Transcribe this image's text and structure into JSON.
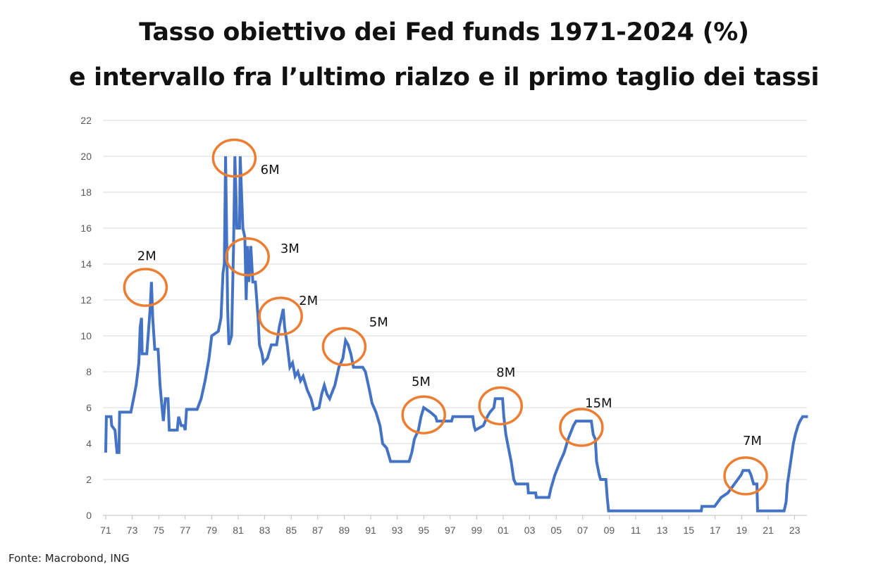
{
  "title_line1": "Tasso obiettivo dei Fed funds 1971-2024 (%)",
  "title_line2": "e intervallo fra l’ultimo rialzo e il primo taglio dei tassi",
  "source": "Fonte: Macrobond, ING",
  "colors": {
    "line": "#4472C4",
    "circle": "#ED7D31",
    "grid": "#D9D9D9"
  },
  "chart_data": {
    "type": "line",
    "title": "Tasso obiettivo dei Fed funds 1971-2024 (%)",
    "xlabel": "",
    "ylabel": "",
    "ylim": [
      0,
      22
    ],
    "xlim": [
      1971,
      2024
    ],
    "grid": true,
    "y_ticks": [
      "0",
      "2",
      "4",
      "6",
      "8",
      "10",
      "12",
      "14",
      "16",
      "18",
      "20",
      "22"
    ],
    "x_ticks": [
      "71",
      "73",
      "75",
      "77",
      "79",
      "81",
      "83",
      "85",
      "87",
      "89",
      "91",
      "93",
      "95",
      "97",
      "99",
      "01",
      "03",
      "05",
      "07",
      "09",
      "11",
      "13",
      "15",
      "17",
      "19",
      "21",
      "23"
    ],
    "series": [
      {
        "points": [
          [
            1971.0,
            3.5
          ],
          [
            1971.05,
            5.5
          ],
          [
            1971.4,
            5.5
          ],
          [
            1971.45,
            5.0
          ],
          [
            1971.7,
            4.75
          ],
          [
            1971.85,
            3.5
          ],
          [
            1972.0,
            3.5
          ],
          [
            1972.05,
            5.75
          ],
          [
            1972.9,
            5.75
          ],
          [
            1973.1,
            6.5
          ],
          [
            1973.3,
            7.25
          ],
          [
            1973.5,
            8.5
          ],
          [
            1973.6,
            10.5
          ],
          [
            1973.7,
            11.0
          ],
          [
            1973.75,
            9.0
          ],
          [
            1974.1,
            9.0
          ],
          [
            1974.2,
            10.0
          ],
          [
            1974.35,
            11.5
          ],
          [
            1974.45,
            13.0
          ],
          [
            1974.55,
            11.0
          ],
          [
            1974.7,
            9.25
          ],
          [
            1974.95,
            9.25
          ],
          [
            1975.1,
            7.25
          ],
          [
            1975.25,
            6.0
          ],
          [
            1975.35,
            5.25
          ],
          [
            1975.5,
            6.5
          ],
          [
            1975.7,
            6.5
          ],
          [
            1975.8,
            4.75
          ],
          [
            1976.4,
            4.75
          ],
          [
            1976.5,
            5.5
          ],
          [
            1976.7,
            5.0
          ],
          [
            1976.9,
            5.0
          ],
          [
            1977.0,
            4.75
          ],
          [
            1977.1,
            5.9
          ],
          [
            1977.9,
            5.9
          ],
          [
            1978.2,
            6.5
          ],
          [
            1978.5,
            7.5
          ],
          [
            1978.8,
            8.75
          ],
          [
            1979.0,
            10.0
          ],
          [
            1979.5,
            10.25
          ],
          [
            1979.7,
            11.0
          ],
          [
            1979.85,
            13.5
          ],
          [
            1979.95,
            14.0
          ],
          [
            1980.05,
            20.0
          ],
          [
            1980.2,
            11.5
          ],
          [
            1980.3,
            9.5
          ],
          [
            1980.5,
            10.0
          ],
          [
            1980.65,
            15.0
          ],
          [
            1980.75,
            20.0
          ],
          [
            1980.9,
            16.0
          ],
          [
            1981.1,
            16.0
          ],
          [
            1981.15,
            20.0
          ],
          [
            1981.35,
            16.0
          ],
          [
            1981.5,
            15.5
          ],
          [
            1981.6,
            12.0
          ],
          [
            1981.7,
            15.0
          ],
          [
            1981.8,
            13.0
          ],
          [
            1981.95,
            15.0
          ],
          [
            1982.1,
            13.0
          ],
          [
            1982.3,
            13.0
          ],
          [
            1982.5,
            11.0
          ],
          [
            1982.6,
            9.5
          ],
          [
            1982.8,
            9.0
          ],
          [
            1982.9,
            8.5
          ],
          [
            1983.2,
            8.75
          ],
          [
            1983.5,
            9.5
          ],
          [
            1983.9,
            9.5
          ],
          [
            1984.1,
            10.5
          ],
          [
            1984.4,
            11.5
          ],
          [
            1984.5,
            10.5
          ],
          [
            1984.7,
            9.5
          ],
          [
            1984.9,
            8.25
          ],
          [
            1985.1,
            8.5
          ],
          [
            1985.3,
            7.75
          ],
          [
            1985.5,
            8.0
          ],
          [
            1985.7,
            7.5
          ],
          [
            1985.9,
            7.75
          ],
          [
            1986.2,
            7.0
          ],
          [
            1986.5,
            6.5
          ],
          [
            1986.7,
            5.9
          ],
          [
            1987.1,
            6.0
          ],
          [
            1987.3,
            6.75
          ],
          [
            1987.5,
            7.25
          ],
          [
            1987.7,
            6.75
          ],
          [
            1987.9,
            6.5
          ],
          [
            1988.3,
            7.25
          ],
          [
            1988.6,
            8.25
          ],
          [
            1988.9,
            8.75
          ],
          [
            1989.1,
            9.75
          ],
          [
            1989.3,
            9.5
          ],
          [
            1989.5,
            9.0
          ],
          [
            1989.7,
            8.25
          ],
          [
            1990.4,
            8.25
          ],
          [
            1990.6,
            8.0
          ],
          [
            1990.9,
            7.0
          ],
          [
            1991.1,
            6.25
          ],
          [
            1991.4,
            5.75
          ],
          [
            1991.7,
            5.0
          ],
          [
            1991.9,
            4.0
          ],
          [
            1992.2,
            3.75
          ],
          [
            1992.5,
            3.0
          ],
          [
            1993.9,
            3.0
          ],
          [
            1994.1,
            3.5
          ],
          [
            1994.3,
            4.25
          ],
          [
            1994.6,
            4.75
          ],
          [
            1994.8,
            5.5
          ],
          [
            1995.0,
            6.0
          ],
          [
            1995.5,
            5.75
          ],
          [
            1995.9,
            5.5
          ],
          [
            1996.0,
            5.25
          ],
          [
            1997.1,
            5.25
          ],
          [
            1997.2,
            5.5
          ],
          [
            1998.7,
            5.5
          ],
          [
            1998.8,
            5.0
          ],
          [
            1998.9,
            4.75
          ],
          [
            1999.5,
            5.0
          ],
          [
            1999.8,
            5.5
          ],
          [
            2000.0,
            5.75
          ],
          [
            2000.3,
            6.0
          ],
          [
            2000.4,
            6.5
          ],
          [
            2000.95,
            6.5
          ],
          [
            2001.05,
            5.5
          ],
          [
            2001.2,
            4.5
          ],
          [
            2001.4,
            3.75
          ],
          [
            2001.6,
            3.0
          ],
          [
            2001.8,
            2.0
          ],
          [
            2001.95,
            1.75
          ],
          [
            2002.85,
            1.75
          ],
          [
            2002.9,
            1.25
          ],
          [
            2003.45,
            1.25
          ],
          [
            2003.5,
            1.0
          ],
          [
            2004.45,
            1.0
          ],
          [
            2004.6,
            1.5
          ],
          [
            2004.9,
            2.25
          ],
          [
            2005.3,
            3.0
          ],
          [
            2005.6,
            3.5
          ],
          [
            2005.9,
            4.25
          ],
          [
            2006.3,
            5.0
          ],
          [
            2006.5,
            5.25
          ],
          [
            2007.65,
            5.25
          ],
          [
            2007.8,
            4.5
          ],
          [
            2007.95,
            4.25
          ],
          [
            2008.05,
            3.0
          ],
          [
            2008.25,
            2.25
          ],
          [
            2008.35,
            2.0
          ],
          [
            2008.75,
            2.0
          ],
          [
            2008.85,
            1.0
          ],
          [
            2008.95,
            0.25
          ],
          [
            2015.95,
            0.25
          ],
          [
            2016.0,
            0.5
          ],
          [
            2016.95,
            0.5
          ],
          [
            2017.2,
            0.75
          ],
          [
            2017.45,
            1.0
          ],
          [
            2017.95,
            1.25
          ],
          [
            2018.2,
            1.5
          ],
          [
            2018.45,
            1.75
          ],
          [
            2018.7,
            2.0
          ],
          [
            2018.95,
            2.25
          ],
          [
            2019.1,
            2.5
          ],
          [
            2019.55,
            2.5
          ],
          [
            2019.7,
            2.25
          ],
          [
            2019.8,
            2.0
          ],
          [
            2019.9,
            1.75
          ],
          [
            2020.15,
            1.75
          ],
          [
            2020.2,
            0.25
          ],
          [
            2022.2,
            0.25
          ],
          [
            2022.35,
            0.75
          ],
          [
            2022.45,
            1.75
          ],
          [
            2022.6,
            2.5
          ],
          [
            2022.75,
            3.25
          ],
          [
            2022.9,
            4.0
          ],
          [
            2023.05,
            4.5
          ],
          [
            2023.25,
            5.0
          ],
          [
            2023.4,
            5.25
          ],
          [
            2023.6,
            5.5
          ],
          [
            2024.0,
            5.5
          ]
        ]
      }
    ],
    "annotations": [
      {
        "label": "2M",
        "year": 1974.0,
        "value": 12.7,
        "label_year": 1974.1,
        "label_value": 14.5
      },
      {
        "label": "6M",
        "year": 1980.7,
        "value": 19.9,
        "label_year": 1983.4,
        "label_value": 19.3
      },
      {
        "label": "3M",
        "year": 1981.7,
        "value": 14.4,
        "label_year": 1984.9,
        "label_value": 14.9
      },
      {
        "label": "2M",
        "year": 1984.2,
        "value": 11.1,
        "label_year": 1986.3,
        "label_value": 12.0
      },
      {
        "label": "5M",
        "year": 1989.0,
        "value": 9.4,
        "label_year": 1991.6,
        "label_value": 10.8
      },
      {
        "label": "5M",
        "year": 1995.0,
        "value": 5.6,
        "label_year": 1994.8,
        "label_value": 7.5
      },
      {
        "label": "8M",
        "year": 2000.8,
        "value": 6.1,
        "label_year": 2001.2,
        "label_value": 8.0
      },
      {
        "label": "15M",
        "year": 2006.9,
        "value": 4.9,
        "label_year": 2008.2,
        "label_value": 6.3
      },
      {
        "label": "7M",
        "year": 2019.3,
        "value": 2.2,
        "label_year": 2019.8,
        "label_value": 4.2
      }
    ]
  }
}
